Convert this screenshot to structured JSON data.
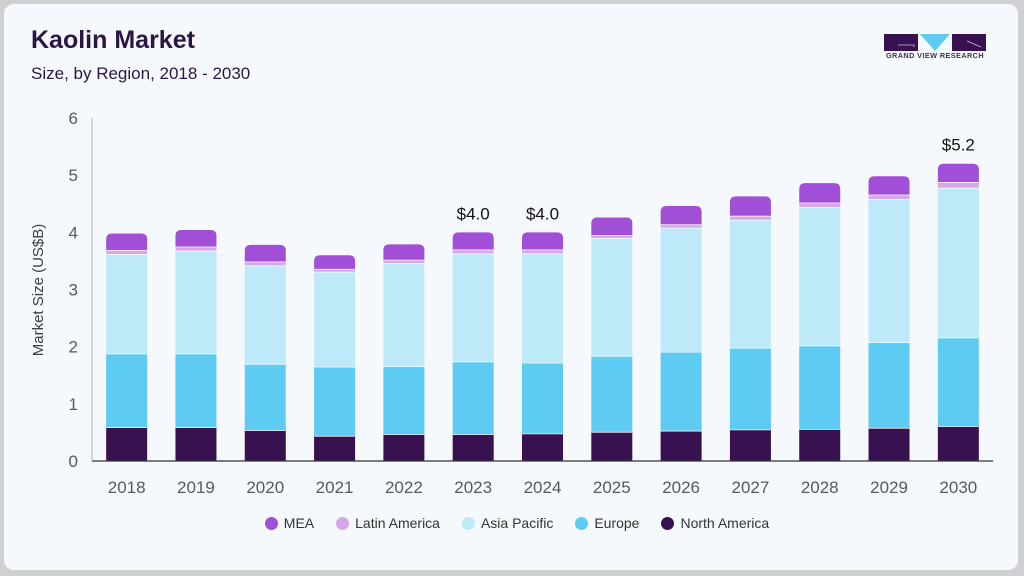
{
  "header": {
    "title": "Kaolin Market",
    "subtitle": "Size, by Region, 2018 - 2030"
  },
  "brand": {
    "logo_text": "GRAND VIEW RESEARCH",
    "logo_icon": "gvr-logo-icon",
    "colors": {
      "dark": "#371150",
      "accent": "#5ecbf3"
    }
  },
  "chart_data": {
    "type": "bar",
    "stacked": true,
    "title": "Kaolin Market",
    "subtitle": "Size, by Region, 2018 - 2030",
    "xlabel": "",
    "ylabel": "Market Size (US$B)",
    "ylim": [
      0,
      6
    ],
    "yticks": [
      "0",
      "1",
      "2",
      "3",
      "4",
      "5",
      "6"
    ],
    "categories": [
      "2018",
      "2019",
      "2020",
      "2021",
      "2022",
      "2023",
      "2024",
      "2025",
      "2026",
      "2027",
      "2028",
      "2029",
      "2030"
    ],
    "series": [
      {
        "name": "North America",
        "color": "#371150",
        "values": [
          0.59,
          0.59,
          0.54,
          0.44,
          0.47,
          0.47,
          0.48,
          0.51,
          0.53,
          0.55,
          0.56,
          0.58,
          0.61
        ]
      },
      {
        "name": "Europe",
        "color": "#5ecbf3",
        "values": [
          1.29,
          1.29,
          1.16,
          1.21,
          1.19,
          1.27,
          1.24,
          1.33,
          1.38,
          1.43,
          1.46,
          1.5,
          1.55
        ]
      },
      {
        "name": "Asia Pacific",
        "color": "#bde9f9",
        "values": [
          1.74,
          1.8,
          1.72,
          1.66,
          1.8,
          1.89,
          1.91,
          2.06,
          2.17,
          2.24,
          2.42,
          2.5,
          2.62
        ]
      },
      {
        "name": "Latin America",
        "color": "#d6a8ea",
        "values": [
          0.07,
          0.07,
          0.07,
          0.05,
          0.06,
          0.07,
          0.07,
          0.05,
          0.06,
          0.07,
          0.08,
          0.08,
          0.1
        ]
      },
      {
        "name": "MEA",
        "color": "#a24fd8",
        "values": [
          0.29,
          0.29,
          0.29,
          0.24,
          0.27,
          0.3,
          0.3,
          0.31,
          0.32,
          0.34,
          0.34,
          0.32,
          0.32
        ]
      }
    ],
    "data_labels": [
      {
        "category": "2023",
        "text": "$4.0"
      },
      {
        "category": "2024",
        "text": "$4.0"
      },
      {
        "category": "2030",
        "text": "$5.2"
      }
    ],
    "legend": {
      "position": "bottom",
      "order": [
        "MEA",
        "Latin America",
        "Asia Pacific",
        "Europe",
        "North America"
      ]
    },
    "grid": false
  }
}
